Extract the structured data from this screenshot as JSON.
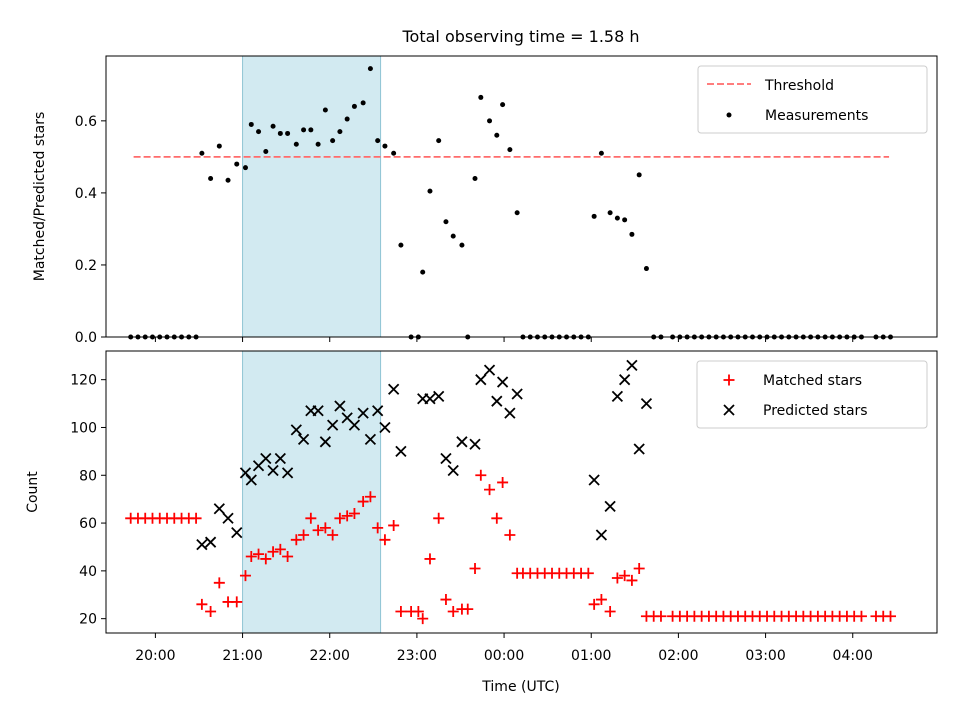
{
  "title": "Total observing time = 1.58 h",
  "colors": {
    "threshold": "#ff6b6b",
    "measurement": "#000000",
    "matched": "#ff0000",
    "predicted": "#000000",
    "span": "#add8e6"
  },
  "chart_data": [
    {
      "type": "scatter",
      "title": "Total observing time = 1.58 h",
      "ylabel": "Matched/Predicted stars",
      "xlabel": "",
      "xlim": [
        "19:26",
        "04:58"
      ],
      "ylim": [
        0,
        0.78
      ],
      "yticks": [
        0.0,
        0.2,
        0.4,
        0.6
      ],
      "ytick_labels": [
        "0.0",
        "0.2",
        "0.4",
        "0.6"
      ],
      "shaded_span": [
        "21:00",
        "22:35"
      ],
      "legend_position": "upper right",
      "threshold": {
        "name": "Threshold",
        "y": 0.5,
        "x_start": "19:45",
        "x_end": "04:25",
        "style": "dashed"
      },
      "series": [
        {
          "name": "Measurements",
          "marker": "dot",
          "points": [
            [
              "19:43",
              0
            ],
            [
              "19:48",
              0
            ],
            [
              "19:53",
              0
            ],
            [
              "19:58",
              0
            ],
            [
              "20:03",
              0
            ],
            [
              "20:08",
              0
            ],
            [
              "20:13",
              0
            ],
            [
              "20:18",
              0
            ],
            [
              "20:23",
              0
            ],
            [
              "20:28",
              0
            ],
            [
              "20:32",
              0.51
            ],
            [
              "20:38",
              0.44
            ],
            [
              "20:44",
              0.53
            ],
            [
              "20:50",
              0.435
            ],
            [
              "20:56",
              0.48
            ],
            [
              "21:02",
              0.47
            ],
            [
              "21:06",
              0.59
            ],
            [
              "21:11",
              0.57
            ],
            [
              "21:16",
              0.515
            ],
            [
              "21:21",
              0.585
            ],
            [
              "21:26",
              0.565
            ],
            [
              "21:31",
              0.565
            ],
            [
              "21:37",
              0.535
            ],
            [
              "21:42",
              0.575
            ],
            [
              "21:47",
              0.575
            ],
            [
              "21:52",
              0.535
            ],
            [
              "21:57",
              0.63
            ],
            [
              "22:02",
              0.545
            ],
            [
              "22:07",
              0.57
            ],
            [
              "22:12",
              0.605
            ],
            [
              "22:17",
              0.64
            ],
            [
              "22:23",
              0.65
            ],
            [
              "22:28",
              0.745
            ],
            [
              "22:33",
              0.545
            ],
            [
              "22:38",
              0.53
            ],
            [
              "22:44",
              0.51
            ],
            [
              "22:49",
              0.255
            ],
            [
              "22:56",
              0
            ],
            [
              "23:01",
              0
            ],
            [
              "23:04",
              0.18
            ],
            [
              "23:09",
              0.405
            ],
            [
              "23:15",
              0.545
            ],
            [
              "23:20",
              0.32
            ],
            [
              "23:25",
              0.28
            ],
            [
              "23:31",
              0.255
            ],
            [
              "23:35",
              0
            ],
            [
              "23:40",
              0.44
            ],
            [
              "23:44",
              0.665
            ],
            [
              "23:50",
              0.6
            ],
            [
              "23:55",
              0.56
            ],
            [
              "23:59",
              0.645
            ],
            [
              "00:04",
              0.52
            ],
            [
              "00:09",
              0.345
            ],
            [
              "00:13",
              0
            ],
            [
              "00:18",
              0
            ],
            [
              "00:23",
              0
            ],
            [
              "00:28",
              0
            ],
            [
              "00:33",
              0
            ],
            [
              "00:38",
              0
            ],
            [
              "00:43",
              0
            ],
            [
              "00:48",
              0
            ],
            [
              "00:53",
              0
            ],
            [
              "00:58",
              0
            ],
            [
              "01:02",
              0.335
            ],
            [
              "01:07",
              0.51
            ],
            [
              "01:13",
              0.345
            ],
            [
              "01:18",
              0.33
            ],
            [
              "01:23",
              0.325
            ],
            [
              "01:28",
              0.285
            ],
            [
              "01:33",
              0.45
            ],
            [
              "01:38",
              0.19
            ],
            [
              "01:43",
              0
            ],
            [
              "01:48",
              0
            ],
            [
              "01:56",
              0
            ],
            [
              "02:01",
              0
            ],
            [
              "02:06",
              0
            ],
            [
              "02:11",
              0
            ],
            [
              "02:16",
              0
            ],
            [
              "02:21",
              0
            ],
            [
              "02:26",
              0
            ],
            [
              "02:31",
              0
            ],
            [
              "02:36",
              0
            ],
            [
              "02:41",
              0
            ],
            [
              "02:46",
              0
            ],
            [
              "02:51",
              0
            ],
            [
              "02:56",
              0
            ],
            [
              "03:01",
              0
            ],
            [
              "03:06",
              0
            ],
            [
              "03:11",
              0
            ],
            [
              "03:16",
              0
            ],
            [
              "03:21",
              0
            ],
            [
              "03:26",
              0
            ],
            [
              "03:31",
              0
            ],
            [
              "03:36",
              0
            ],
            [
              "03:41",
              0
            ],
            [
              "03:46",
              0
            ],
            [
              "03:51",
              0
            ],
            [
              "03:56",
              0
            ],
            [
              "04:01",
              0
            ],
            [
              "04:06",
              0
            ],
            [
              "04:16",
              0
            ],
            [
              "04:21",
              0
            ],
            [
              "04:26",
              0
            ]
          ]
        }
      ]
    },
    {
      "type": "scatter",
      "xlabel": "Time (UTC)",
      "ylabel": "Count",
      "xlim": [
        "19:26",
        "04:58"
      ],
      "ylim": [
        14,
        132
      ],
      "yticks": [
        20,
        40,
        60,
        80,
        100,
        120
      ],
      "ytick_labels": [
        "20",
        "40",
        "60",
        "80",
        "100",
        "120"
      ],
      "xticks": [
        "20:00",
        "21:00",
        "22:00",
        "23:00",
        "00:00",
        "01:00",
        "02:00",
        "03:00",
        "04:00"
      ],
      "xtick_labels": [
        "20:00",
        "21:00",
        "22:00",
        "23:00",
        "00:00",
        "01:00",
        "02:00",
        "03:00",
        "04:00"
      ],
      "shaded_span": [
        "21:00",
        "22:35"
      ],
      "legend_position": "upper right",
      "series": [
        {
          "name": "Matched stars",
          "marker": "plus",
          "points": [
            [
              "19:43",
              62
            ],
            [
              "19:48",
              62
            ],
            [
              "19:53",
              62
            ],
            [
              "19:58",
              62
            ],
            [
              "20:03",
              62
            ],
            [
              "20:08",
              62
            ],
            [
              "20:13",
              62
            ],
            [
              "20:18",
              62
            ],
            [
              "20:23",
              62
            ],
            [
              "20:28",
              62
            ],
            [
              "20:32",
              26
            ],
            [
              "20:38",
              23
            ],
            [
              "20:44",
              35
            ],
            [
              "20:50",
              27
            ],
            [
              "20:56",
              27
            ],
            [
              "21:02",
              38
            ],
            [
              "21:06",
              46
            ],
            [
              "21:11",
              47
            ],
            [
              "21:16",
              45
            ],
            [
              "21:21",
              48
            ],
            [
              "21:26",
              49
            ],
            [
              "21:31",
              46
            ],
            [
              "21:37",
              53
            ],
            [
              "21:42",
              55
            ],
            [
              "21:47",
              62
            ],
            [
              "21:52",
              57
            ],
            [
              "21:57",
              58
            ],
            [
              "22:02",
              55
            ],
            [
              "22:07",
              62
            ],
            [
              "22:12",
              63
            ],
            [
              "22:17",
              64
            ],
            [
              "22:23",
              69
            ],
            [
              "22:28",
              71
            ],
            [
              "22:33",
              58
            ],
            [
              "22:38",
              53
            ],
            [
              "22:44",
              59
            ],
            [
              "22:49",
              23
            ],
            [
              "22:56",
              23
            ],
            [
              "23:01",
              23
            ],
            [
              "23:04",
              20
            ],
            [
              "23:09",
              45
            ],
            [
              "23:15",
              62
            ],
            [
              "23:20",
              28
            ],
            [
              "23:25",
              23
            ],
            [
              "23:31",
              24
            ],
            [
              "23:35",
              24
            ],
            [
              "23:40",
              41
            ],
            [
              "23:44",
              80
            ],
            [
              "23:50",
              74
            ],
            [
              "23:55",
              62
            ],
            [
              "23:59",
              77
            ],
            [
              "00:04",
              55
            ],
            [
              "00:09",
              39
            ],
            [
              "00:13",
              39
            ],
            [
              "00:18",
              39
            ],
            [
              "00:23",
              39
            ],
            [
              "00:28",
              39
            ],
            [
              "00:33",
              39
            ],
            [
              "00:38",
              39
            ],
            [
              "00:43",
              39
            ],
            [
              "00:48",
              39
            ],
            [
              "00:53",
              39
            ],
            [
              "00:58",
              39
            ],
            [
              "01:02",
              26
            ],
            [
              "01:07",
              28
            ],
            [
              "01:13",
              23
            ],
            [
              "01:18",
              37
            ],
            [
              "01:23",
              38
            ],
            [
              "01:28",
              36
            ],
            [
              "01:33",
              41
            ],
            [
              "01:38",
              21
            ],
            [
              "01:43",
              21
            ],
            [
              "01:48",
              21
            ],
            [
              "01:56",
              21
            ],
            [
              "02:01",
              21
            ],
            [
              "02:06",
              21
            ],
            [
              "02:11",
              21
            ],
            [
              "02:16",
              21
            ],
            [
              "02:21",
              21
            ],
            [
              "02:26",
              21
            ],
            [
              "02:31",
              21
            ],
            [
              "02:36",
              21
            ],
            [
              "02:41",
              21
            ],
            [
              "02:46",
              21
            ],
            [
              "02:51",
              21
            ],
            [
              "02:56",
              21
            ],
            [
              "03:01",
              21
            ],
            [
              "03:06",
              21
            ],
            [
              "03:11",
              21
            ],
            [
              "03:16",
              21
            ],
            [
              "03:21",
              21
            ],
            [
              "03:26",
              21
            ],
            [
              "03:31",
              21
            ],
            [
              "03:36",
              21
            ],
            [
              "03:41",
              21
            ],
            [
              "03:46",
              21
            ],
            [
              "03:51",
              21
            ],
            [
              "03:56",
              21
            ],
            [
              "04:01",
              21
            ],
            [
              "04:06",
              21
            ],
            [
              "04:16",
              21
            ],
            [
              "04:21",
              21
            ],
            [
              "04:26",
              21
            ]
          ]
        },
        {
          "name": "Predicted stars",
          "marker": "x",
          "points": [
            [
              "20:32",
              51
            ],
            [
              "20:38",
              52
            ],
            [
              "20:44",
              66
            ],
            [
              "20:50",
              62
            ],
            [
              "20:56",
              56
            ],
            [
              "21:02",
              81
            ],
            [
              "21:06",
              78
            ],
            [
              "21:11",
              84
            ],
            [
              "21:16",
              87
            ],
            [
              "21:21",
              82
            ],
            [
              "21:26",
              87
            ],
            [
              "21:31",
              81
            ],
            [
              "21:37",
              99
            ],
            [
              "21:42",
              95
            ],
            [
              "21:47",
              107
            ],
            [
              "21:52",
              107
            ],
            [
              "21:57",
              94
            ],
            [
              "22:02",
              101
            ],
            [
              "22:07",
              109
            ],
            [
              "22:12",
              104
            ],
            [
              "22:17",
              101
            ],
            [
              "22:23",
              106
            ],
            [
              "22:28",
              95
            ],
            [
              "22:33",
              107
            ],
            [
              "22:38",
              100
            ],
            [
              "22:44",
              116
            ],
            [
              "22:49",
              90
            ],
            [
              "23:04",
              112
            ],
            [
              "23:09",
              112
            ],
            [
              "23:15",
              113
            ],
            [
              "23:20",
              87
            ],
            [
              "23:25",
              82
            ],
            [
              "23:31",
              94
            ],
            [
              "23:40",
              93
            ],
            [
              "23:44",
              120
            ],
            [
              "23:50",
              124
            ],
            [
              "23:55",
              111
            ],
            [
              "23:59",
              119
            ],
            [
              "00:04",
              106
            ],
            [
              "00:09",
              114
            ],
            [
              "01:02",
              78
            ],
            [
              "01:07",
              55
            ],
            [
              "01:13",
              67
            ],
            [
              "01:18",
              113
            ],
            [
              "01:23",
              120
            ],
            [
              "01:28",
              126
            ],
            [
              "01:33",
              91
            ],
            [
              "01:38",
              110
            ]
          ]
        }
      ]
    }
  ]
}
